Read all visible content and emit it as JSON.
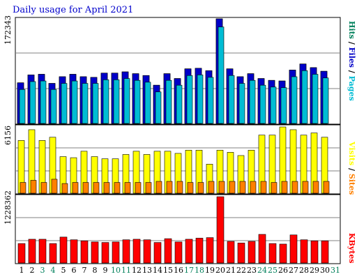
{
  "colors": {
    "hits": "#00805b",
    "files": "#0000c8",
    "pages": "#00bcd4",
    "visits": "#ffff00",
    "sites": "#ff8000",
    "kbytes": "#ff0000",
    "title": "#0000cc",
    "weekend_day": "#00805b",
    "weekday": "#000000"
  },
  "chart_data": [
    {
      "type": "bar",
      "title": "Daily usage for April 2021",
      "ymax_label": "172343",
      "legend_labels": [
        "Hits",
        "/",
        "Files",
        "/",
        "Pages"
      ],
      "categories": [
        "1",
        "2",
        "3",
        "4",
        "5",
        "6",
        "7",
        "8",
        "9",
        "10",
        "11",
        "12",
        "13",
        "14",
        "15",
        "16",
        "17",
        "18",
        "19",
        "20",
        "21",
        "22",
        "23",
        "24",
        "25",
        "26",
        "27",
        "28",
        "29",
        "30",
        "31"
      ],
      "weekend_days": [
        "3",
        "4",
        "10",
        "11",
        "17",
        "18",
        "24",
        "25",
        "31"
      ],
      "ylim": [
        0,
        172343
      ],
      "series": [
        {
          "name": "Hits",
          "values": [
            67000,
            80000,
            81000,
            66000,
            77000,
            81000,
            77000,
            76000,
            83000,
            83000,
            85000,
            82000,
            79000,
            63000,
            82000,
            74000,
            90000,
            91000,
            87000,
            172343,
            90000,
            77000,
            82000,
            74000,
            71000,
            70000,
            88000,
            98000,
            92000,
            86000,
            0
          ]
        },
        {
          "name": "Files",
          "values": [
            67000,
            80000,
            81000,
            66000,
            77000,
            81000,
            77000,
            76000,
            83000,
            83000,
            85000,
            82000,
            79000,
            63000,
            82000,
            74000,
            90000,
            91000,
            87000,
            172343,
            90000,
            77000,
            82000,
            74000,
            71000,
            70000,
            88000,
            98000,
            92000,
            86000,
            0
          ]
        },
        {
          "name": "Pages",
          "values": [
            56000,
            69000,
            70000,
            56000,
            66000,
            70000,
            66000,
            66000,
            72000,
            72000,
            74000,
            71000,
            68000,
            52000,
            71000,
            63000,
            79000,
            80000,
            76000,
            159000,
            79000,
            66000,
            71000,
            63000,
            60000,
            59000,
            77000,
            87000,
            81000,
            75000,
            0
          ]
        }
      ]
    },
    {
      "type": "bar",
      "ymax_label": "6156",
      "legend_labels": [
        "Visits",
        "/",
        "Sites"
      ],
      "ylim": [
        0,
        6156
      ],
      "series": [
        {
          "name": "Visits",
          "values": [
            4900,
            5900,
            4900,
            5200,
            3400,
            3300,
            3900,
            3400,
            3200,
            3200,
            3600,
            3900,
            3600,
            3900,
            3900,
            3700,
            4000,
            4000,
            2700,
            4000,
            3800,
            3500,
            4000,
            5400,
            5400,
            6156,
            5900,
            5400,
            5600,
            5200,
            0
          ]
        },
        {
          "name": "Sites",
          "values": [
            1000,
            1200,
            1000,
            1300,
            900,
            1000,
            1000,
            1000,
            1000,
            1000,
            1000,
            1000,
            1000,
            1100,
            1100,
            1100,
            1000,
            1000,
            1100,
            1100,
            1100,
            1100,
            1100,
            1100,
            1000,
            1100,
            1100,
            1100,
            1100,
            1100,
            0
          ]
        }
      ]
    },
    {
      "type": "bar",
      "ymax_label": "1228362",
      "legend_labels": [
        "KBytes"
      ],
      "ylim": [
        0,
        1228362
      ],
      "series": [
        {
          "name": "KBytes",
          "values": [
            360000,
            440000,
            440000,
            360000,
            480000,
            430000,
            410000,
            390000,
            380000,
            390000,
            430000,
            440000,
            430000,
            380000,
            450000,
            390000,
            440000,
            460000,
            470000,
            1228362,
            400000,
            370000,
            400000,
            530000,
            360000,
            350000,
            520000,
            430000,
            410000,
            410000,
            0
          ]
        }
      ]
    }
  ]
}
